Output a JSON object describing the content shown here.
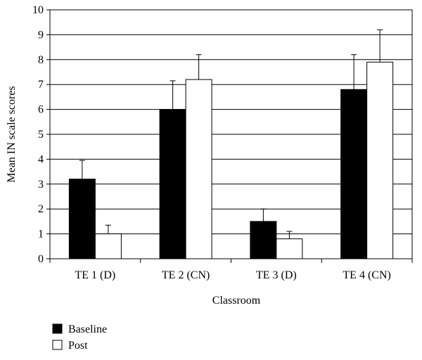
{
  "chart_data": {
    "type": "bar",
    "categories": [
      "TE 1 (D)",
      "TE 2 (CN)",
      "TE 3 (D)",
      "TE 4 (CN)"
    ],
    "series": [
      {
        "name": "Baseline",
        "color": "#000000",
        "values": [
          3.2,
          6.0,
          1.5,
          6.8
        ],
        "error": [
          0.75,
          1.15,
          0.5,
          1.4
        ]
      },
      {
        "name": "Post",
        "color": "#ffffff",
        "values": [
          1.0,
          7.2,
          0.8,
          7.9
        ],
        "error": [
          0.35,
          1.0,
          0.3,
          1.3
        ]
      }
    ],
    "xlabel": "Classroom",
    "ylabel": "Mean IN scale scores",
    "ylim": [
      0,
      10
    ],
    "yticks": [
      0,
      1,
      2,
      3,
      4,
      5,
      6,
      7,
      8,
      9,
      10
    ],
    "grid": "horizontal",
    "legend_position": "bottom-left"
  }
}
